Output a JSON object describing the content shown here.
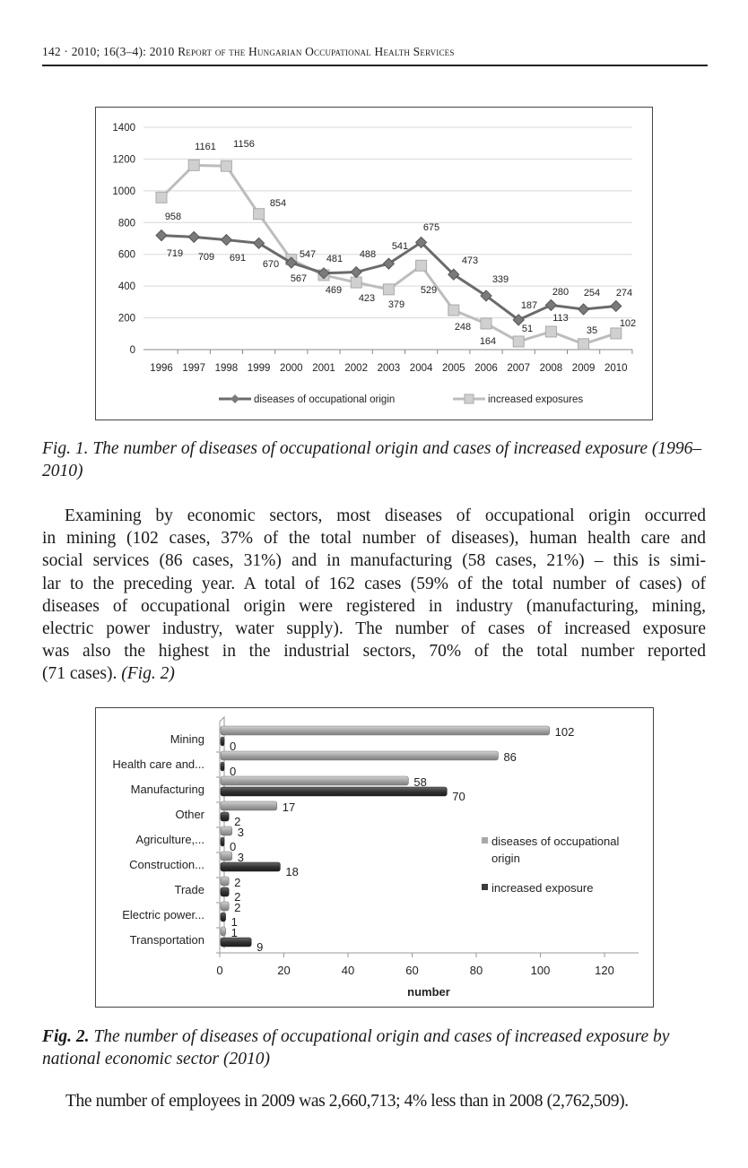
{
  "header": {
    "page_ref": "142 · 2010; 16(3–4): 2010 ",
    "journal": "Report of the Hungarian Occupational Health Services"
  },
  "figure1": {
    "caption": "Fig. 1. The number of diseases of occupational origin and cases of increased exposure (1996–2010)"
  },
  "paragraph": {
    "lines": [
      "Examining by economic sectors, most diseases of occupational origin occurred",
      "in mining (102 cases, 37% of the total number of diseases), human health care and",
      "social services (86 cases, 31%) and in manufacturing (58 cases, 21%) – this is simi-",
      "lar to the preceding year. A total of 162 cases (59% of the total number of cases) of",
      "diseases of occupational origin were registered in industry (manufacturing, mining,",
      "electric power industry, water supply). The number of cases of increased exposure",
      "was also the highest in the industrial sectors, 70% of the total number reported",
      "(71 cases). "
    ],
    "fig_ref": "(Fig. 2)"
  },
  "figure2": {
    "caption_label": "Fig. 2.",
    "caption_text": " The number of diseases of occupational origin and cases of increased exposure by national economic sector (2010)"
  },
  "closing": "The number of employees in 2009 was 2,660,713; 4% less than in 2008 (2,762,509).",
  "chart_data": [
    {
      "type": "line",
      "title": "",
      "x": [
        "1996",
        "1997",
        "1998",
        "1999",
        "2000",
        "2001",
        "2002",
        "2003",
        "2004",
        "2005",
        "2006",
        "2007",
        "2008",
        "2009",
        "2010"
      ],
      "ylim": [
        0,
        1400
      ],
      "yticks": [
        "0",
        "200",
        "400",
        "600",
        "800",
        "1000",
        "1200",
        "1400"
      ],
      "grid": true,
      "legend": "bottom",
      "series": [
        {
          "name": "diseases of occupational origin",
          "color": "#6b6b6b",
          "marker": "diamond",
          "values": [
            719,
            709,
            691,
            670,
            547,
            481,
            488,
            541,
            675,
            473,
            339,
            187,
            280,
            254,
            274
          ]
        },
        {
          "name": "increased exposures",
          "color": "#bdbdbd",
          "marker": "square",
          "values": [
            958,
            1161,
            1156,
            854,
            567,
            469,
            423,
            379,
            529,
            248,
            164,
            51,
            113,
            35,
            102
          ]
        }
      ]
    },
    {
      "type": "bar",
      "orientation": "horizontal",
      "categories": [
        "Mining",
        "Health care and...",
        "Manufacturing",
        "Other",
        "Agriculture,...",
        "Construction...",
        "Trade",
        "Electric power...",
        "Transportation"
      ],
      "xlabel": "number",
      "xlim": [
        0,
        130
      ],
      "xticks": [
        "0",
        "20",
        "40",
        "60",
        "80",
        "100",
        "120"
      ],
      "legend": "right",
      "series": [
        {
          "name": "diseases of occupational origin",
          "color": "#a8a8a8",
          "values": [
            102,
            86,
            58,
            17,
            3,
            3,
            2,
            2,
            1
          ]
        },
        {
          "name": "increased exposure",
          "color": "#3c3c3c",
          "values": [
            0,
            0,
            70,
            2,
            0,
            18,
            2,
            1,
            9
          ]
        }
      ]
    }
  ]
}
